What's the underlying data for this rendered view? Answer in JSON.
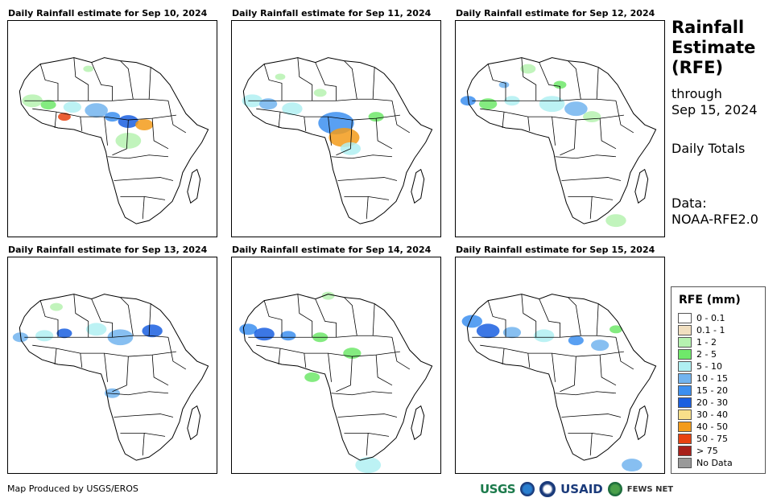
{
  "panels": [
    {
      "title": "Daily Rainfall estimate for Sep 10, 2024"
    },
    {
      "title": "Daily Rainfall estimate for Sep 11, 2024"
    },
    {
      "title": "Daily Rainfall estimate for Sep 12, 2024"
    },
    {
      "title": "Daily Rainfall estimate for Sep 13, 2024"
    },
    {
      "title": "Daily Rainfall estimate for Sep 14, 2024"
    },
    {
      "title": "Daily Rainfall estimate for Sep 15, 2024"
    }
  ],
  "side": {
    "title_line1": "Rainfall",
    "title_line2": "Estimate",
    "title_line3": "(RFE)",
    "through_label": "through",
    "through_date": "Sep 15, 2024",
    "totals_label": "Daily Totals",
    "data_label": "Data:",
    "data_source": "NOAA-RFE2.0"
  },
  "legend": {
    "title": "RFE (mm)",
    "items": [
      {
        "label": "0 - 0.1",
        "color": "#ffffff"
      },
      {
        "label": "0.1 - 1",
        "color": "#f1dfc0"
      },
      {
        "label": "1 - 2",
        "color": "#b6f2b0"
      },
      {
        "label": "2 - 5",
        "color": "#6fe86a"
      },
      {
        "label": "5 - 10",
        "color": "#b0f0f2"
      },
      {
        "label": "10 - 15",
        "color": "#72b4ef"
      },
      {
        "label": "15 - 20",
        "color": "#3c8ff0"
      },
      {
        "label": "20 - 30",
        "color": "#1a5fe0"
      },
      {
        "label": "30 - 40",
        "color": "#f8e08a"
      },
      {
        "label": "40 - 50",
        "color": "#f39b1a"
      },
      {
        "label": "50 - 75",
        "color": "#e8420f"
      },
      {
        "label": "> 75",
        "color": "#a8201a"
      },
      {
        "label": "No Data",
        "color": "#999999"
      }
    ]
  },
  "footer": {
    "credit": "Map Produced by USGS/EROS",
    "logo_usgs": "USGS",
    "logo_usaid": "USAID",
    "logo_fews": "FEWS NET"
  }
}
